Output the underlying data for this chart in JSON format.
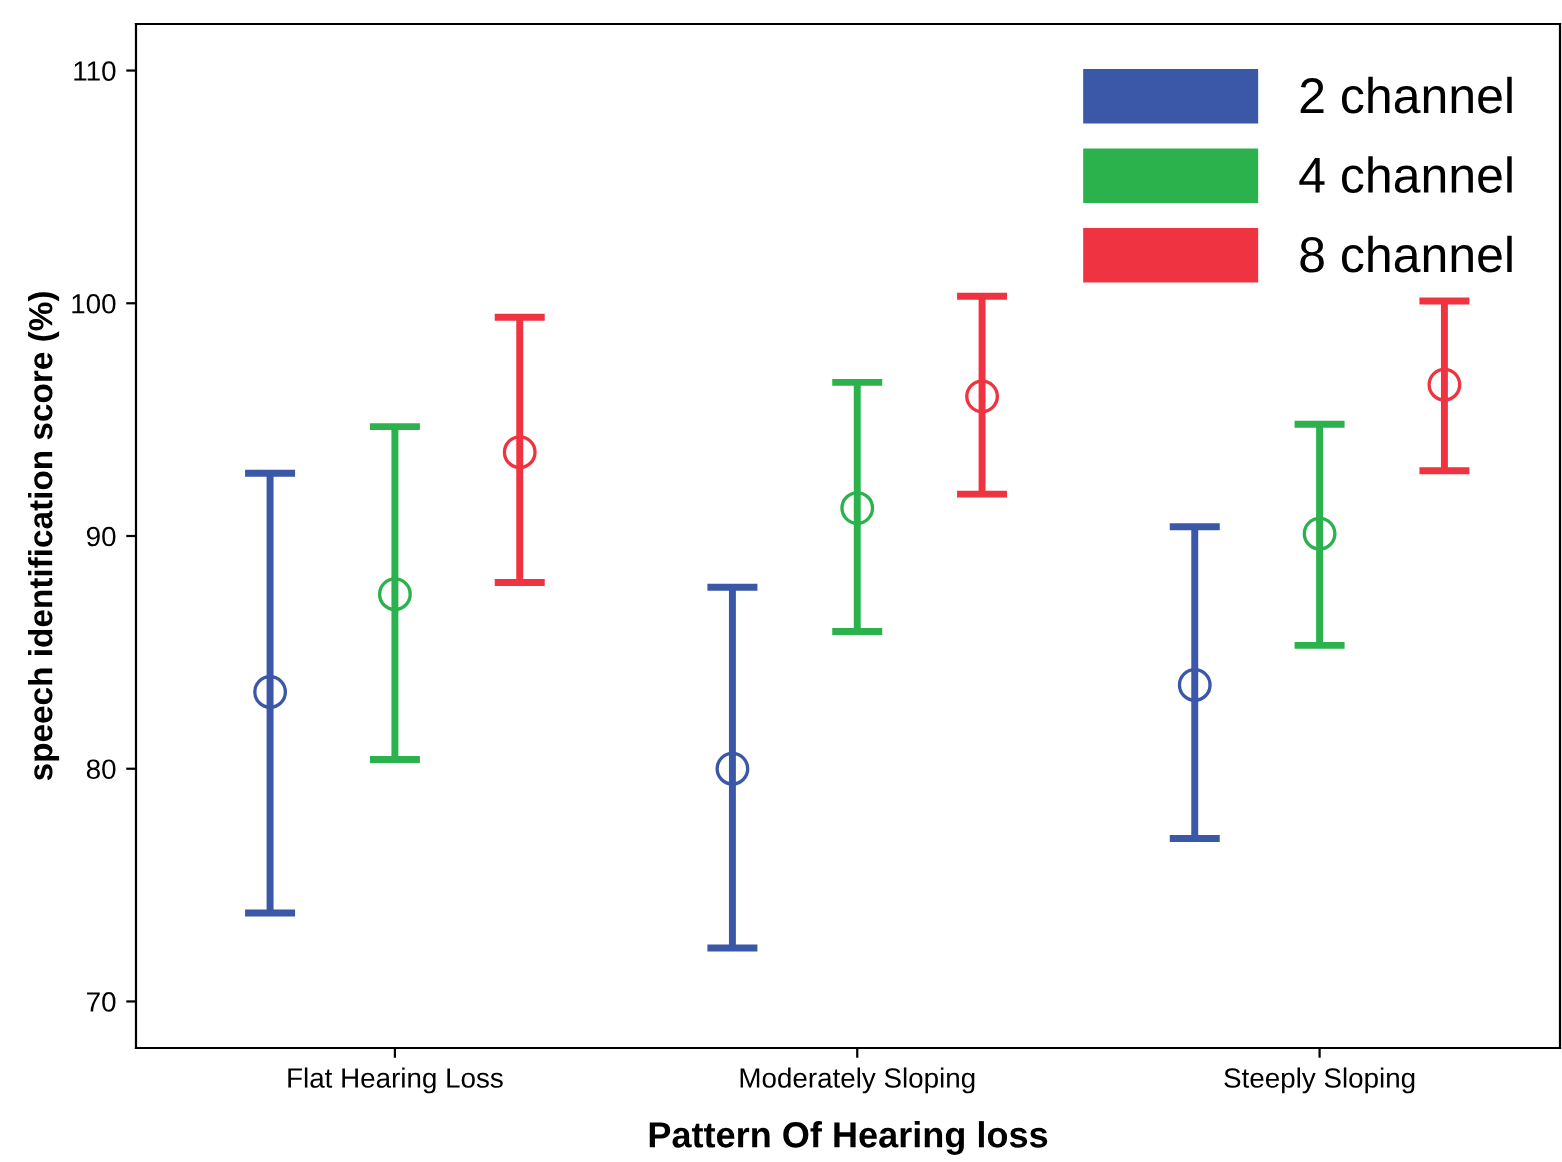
{
  "chart_data": {
    "type": "scatter",
    "xlabel": "Pattern Of Hearing loss",
    "ylabel": "speech identification score (%)",
    "categories": [
      "Flat Hearing Loss",
      "Moderately Sloping",
      "Steeply Sloping"
    ],
    "series": [
      {
        "name": "2 channel",
        "color": "#3a57a8",
        "values": [
          83.3,
          80.0,
          83.6
        ],
        "errors": [
          [
            73.8,
            92.7
          ],
          [
            72.3,
            87.8
          ],
          [
            77.0,
            90.4
          ]
        ]
      },
      {
        "name": "4 channel",
        "color": "#2bb24c",
        "values": [
          87.5,
          91.2,
          90.1
        ],
        "errors": [
          [
            80.4,
            94.7
          ],
          [
            85.9,
            96.6
          ],
          [
            85.3,
            94.8
          ]
        ]
      },
      {
        "name": "8 channel",
        "color": "#ef3340",
        "values": [
          93.6,
          96.0,
          96.5
        ],
        "errors": [
          [
            88.0,
            99.4
          ],
          [
            91.8,
            100.3
          ],
          [
            92.8,
            100.1
          ]
        ]
      }
    ],
    "ylim": [
      68,
      112
    ],
    "yticks": [
      70,
      80,
      90,
      100,
      110
    ],
    "grid": false,
    "legend": "top right",
    "marker": "circle"
  }
}
